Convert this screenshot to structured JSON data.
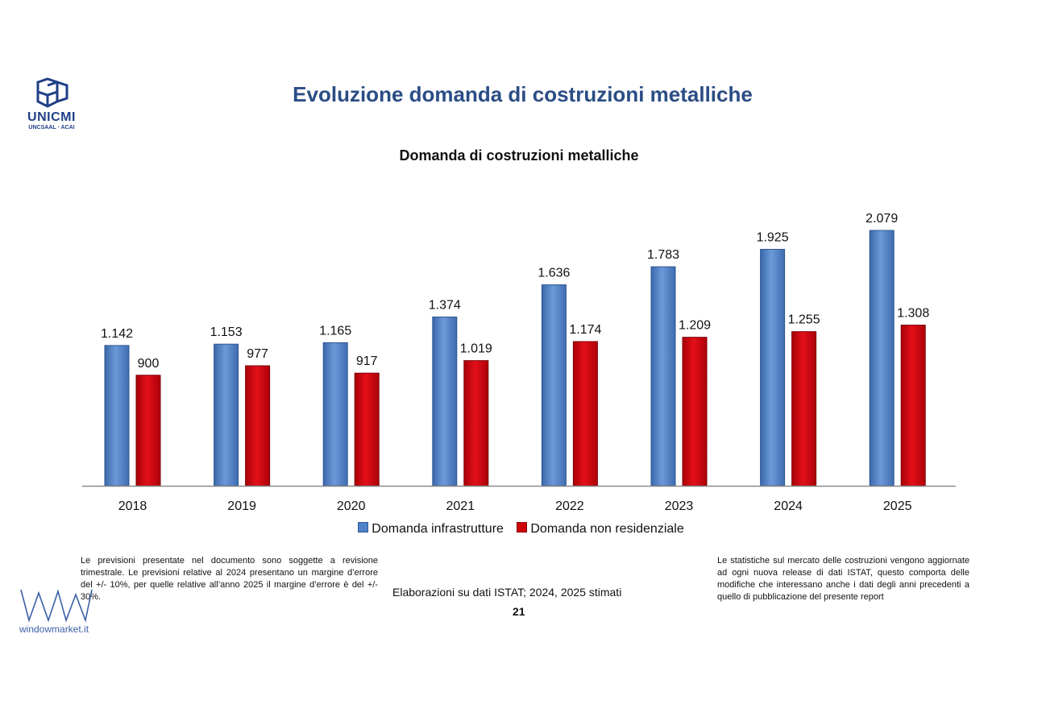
{
  "page": {
    "title": "Evoluzione domanda di costruzioni metalliche",
    "page_number": "21",
    "source": "Elaborazioni su dati ISTAT; 2024, 2025 stimati"
  },
  "logo": {
    "name": "UNICMI",
    "subtitle": "UNCSAAL · ACAI",
    "icon": "unicmi-logo-icon",
    "color": "#1f3f86"
  },
  "watermark": {
    "text": "windowmarket.it",
    "icon": "windowmarket-logo-icon",
    "color": "#3b5fa8"
  },
  "notes": {
    "left": "Le previsioni presentate nel documento sono soggette a revisione trimestrale. Le previsioni relative al 2024 presentano un margine d’errore del +/- 10%, per quelle relative all’anno 2025 il margine d’errore è del +/- 30%.",
    "right": "Le statistiche sul mercato delle costruzioni vengono aggiornate ad ogni nuova release di dati ISTAT, questo comporta delle modifiche che interessano anche i dati degli anni precedenti a quello di pubblicazione del presente report"
  },
  "chart_data": {
    "type": "bar",
    "title": "Domanda di costruzioni metalliche",
    "xlabel": "",
    "ylabel": "",
    "categories": [
      "2018",
      "2019",
      "2020",
      "2021",
      "2022",
      "2023",
      "2024",
      "2025"
    ],
    "series": [
      {
        "name": "Domanda infrastrutture",
        "color": "#4f81c8",
        "values": [
          1142,
          1153,
          1165,
          1374,
          1636,
          1783,
          1925,
          2079
        ],
        "labels": [
          "1.142",
          "1.153",
          "1.165",
          "1.374",
          "1.636",
          "1.783",
          "1.925",
          "2.079"
        ]
      },
      {
        "name": "Domanda non residenziale",
        "color": "#d0000b",
        "values": [
          900,
          977,
          917,
          1019,
          1174,
          1209,
          1255,
          1308
        ],
        "labels": [
          "900",
          "977",
          "917",
          "1.019",
          "1.174",
          "1.209",
          "1.255",
          "1.308"
        ]
      }
    ],
    "ylim": [
      0,
      2079
    ],
    "grid": false,
    "legend_position": "bottom"
  }
}
